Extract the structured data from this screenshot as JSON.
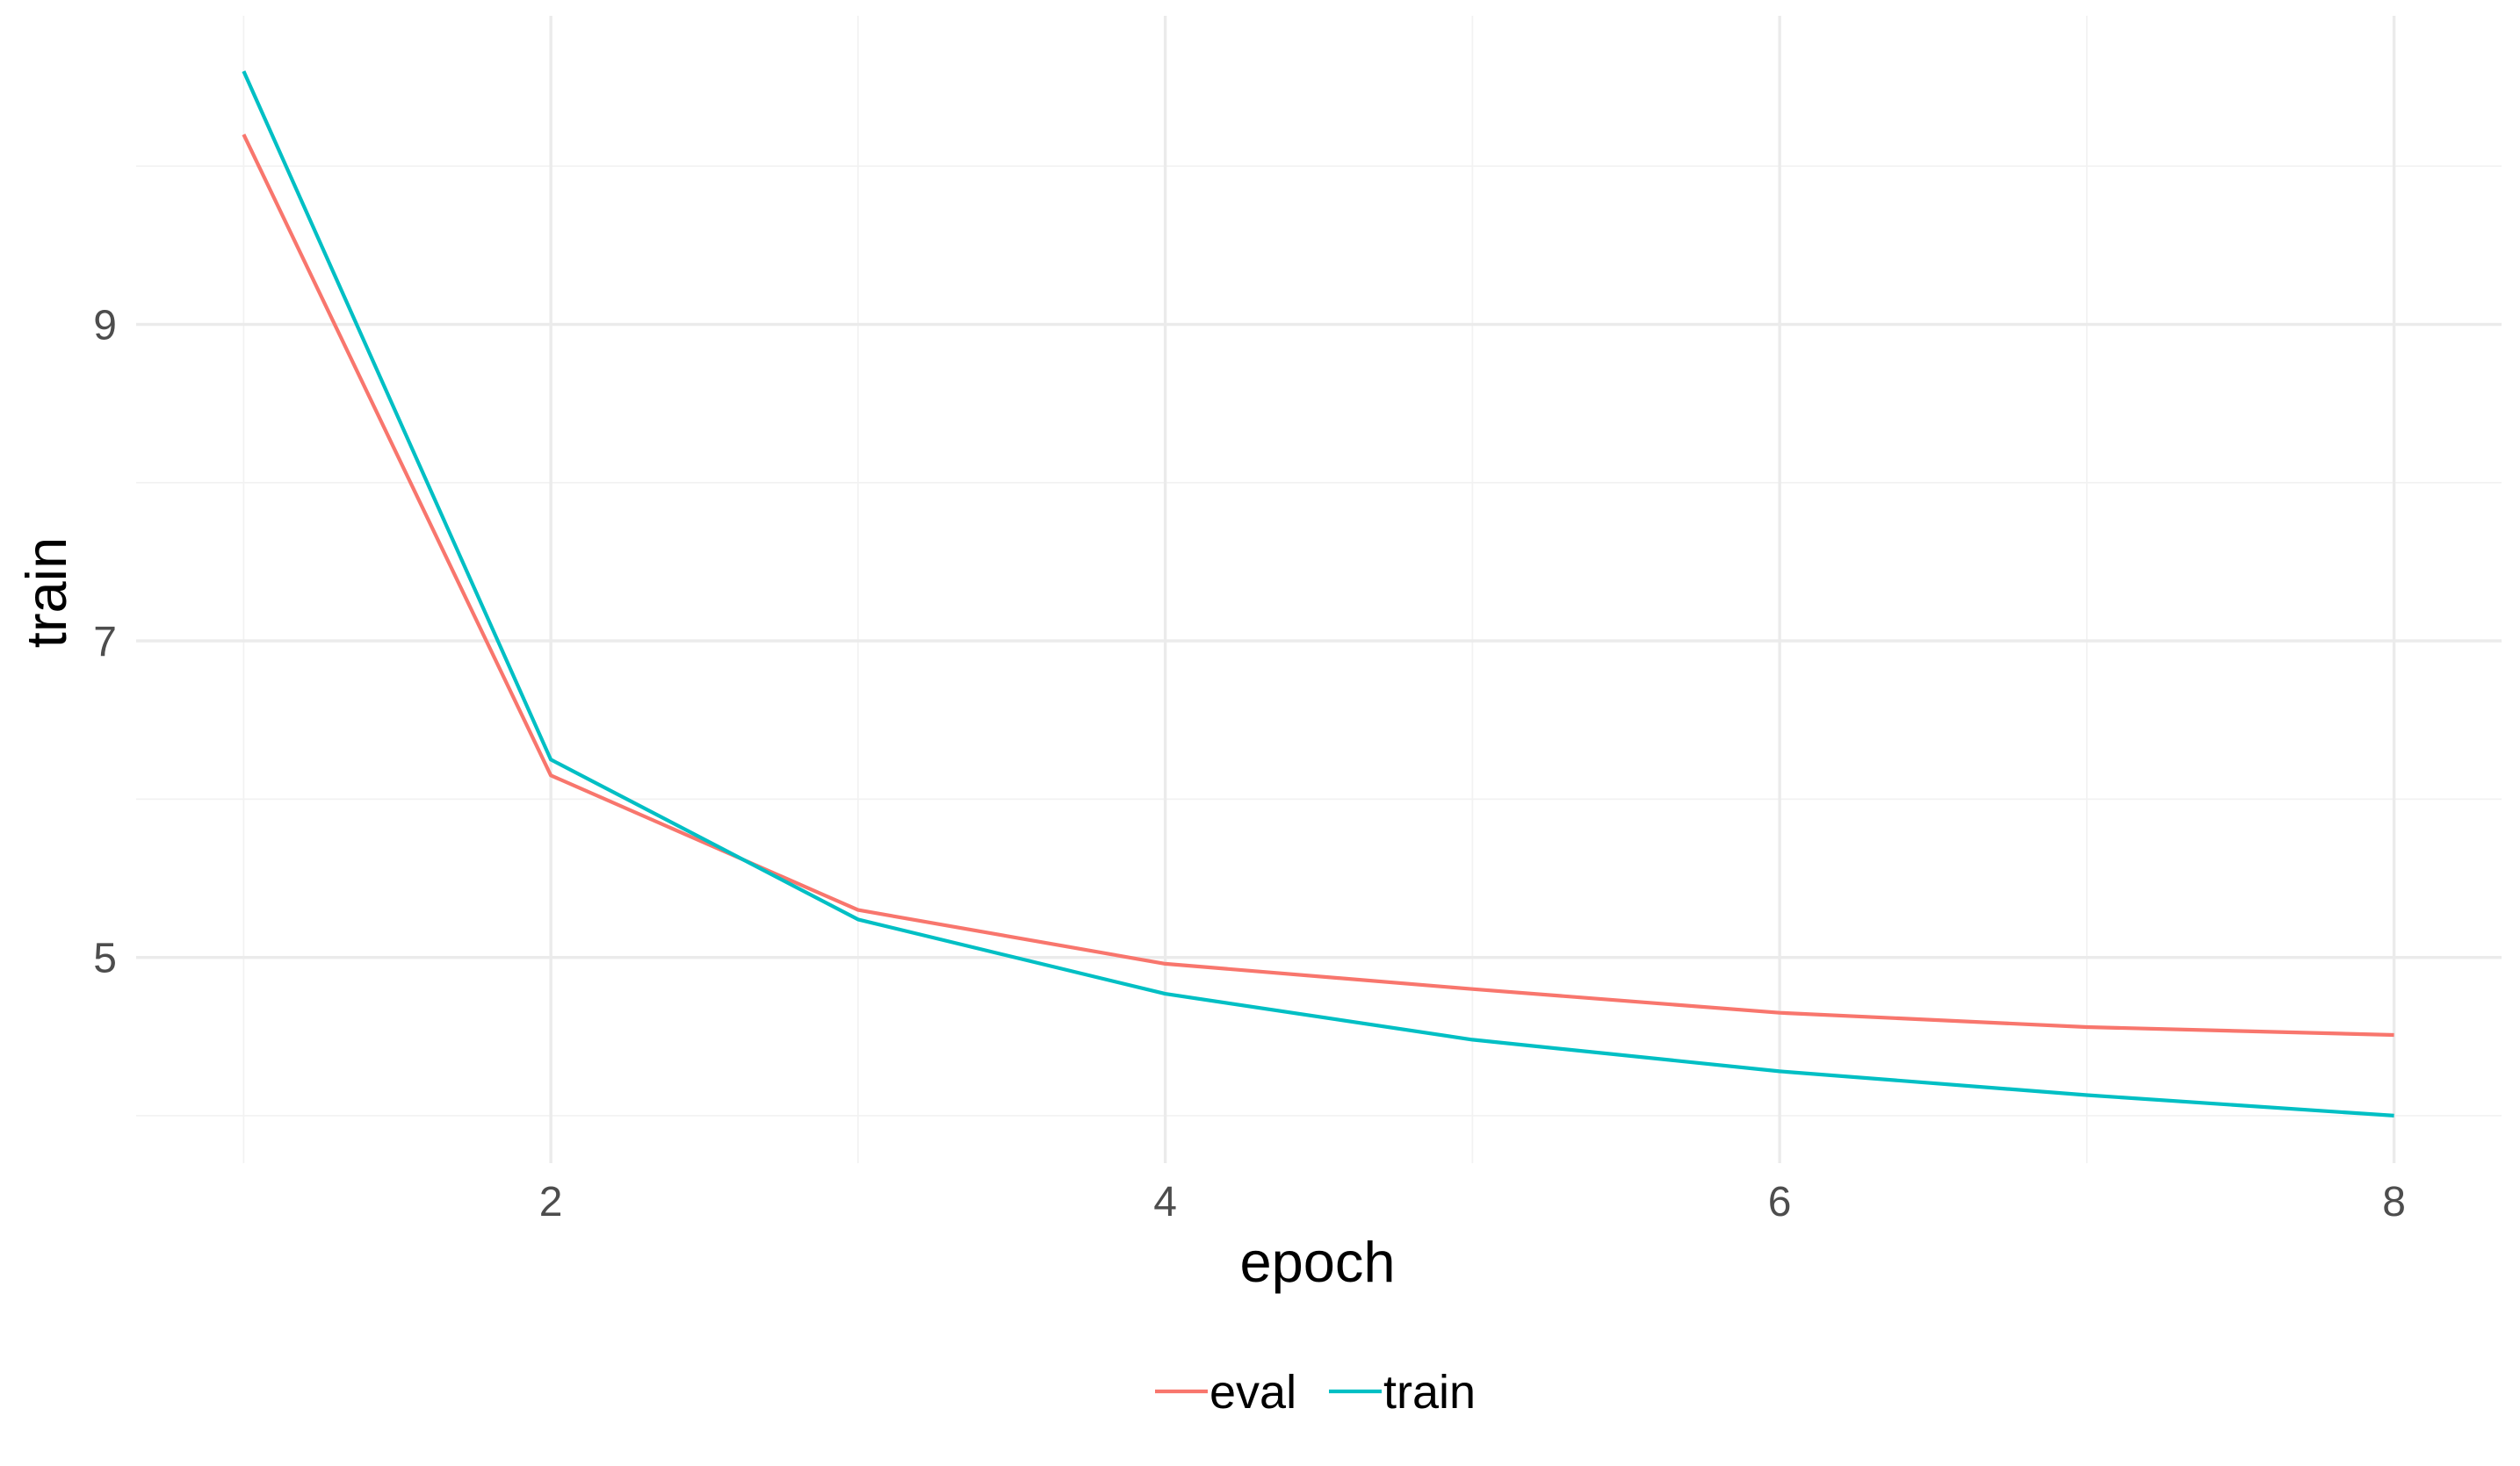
{
  "chart_data": {
    "type": "line",
    "title": "",
    "xlabel": "epoch",
    "ylabel": "train",
    "x": [
      1,
      2,
      3,
      4,
      5,
      6,
      7,
      8
    ],
    "xlim": [
      0.65,
      8.35
    ],
    "ylim": [
      3.7,
      10.95
    ],
    "x_ticks": [
      2,
      4,
      6,
      8
    ],
    "x_tick_labels": [
      "2",
      "4",
      "6",
      "8"
    ],
    "y_ticks": [
      5,
      7,
      9
    ],
    "y_tick_labels": [
      "5",
      "7",
      "9"
    ],
    "grid": true,
    "legend_position": "bottom",
    "series": [
      {
        "name": "eval",
        "color": "#F8766D",
        "values": [
          10.2,
          6.15,
          5.3,
          4.96,
          4.8,
          4.65,
          4.56,
          4.51
        ]
      },
      {
        "name": "train",
        "color": "#00BFC4",
        "values": [
          10.6,
          6.25,
          5.24,
          4.77,
          4.48,
          4.28,
          4.13,
          4.0
        ]
      }
    ]
  }
}
